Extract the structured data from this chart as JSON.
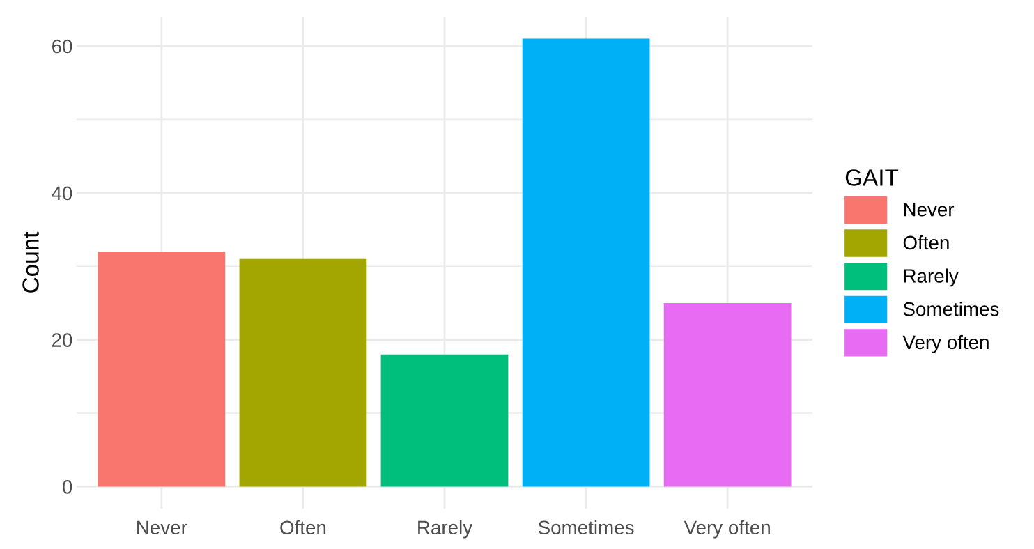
{
  "chart_data": {
    "type": "bar",
    "ylabel": "Count",
    "legend_title": "GAIT",
    "categories": [
      "Never",
      "Often",
      "Rarely",
      "Sometimes",
      "Very often"
    ],
    "series": [
      {
        "name": "Never",
        "color": "#f8766d",
        "values": [
          32,
          null,
          null,
          null,
          null
        ]
      },
      {
        "name": "Often",
        "color": "#a3a500",
        "values": [
          null,
          31,
          null,
          null,
          null
        ]
      },
      {
        "name": "Rarely",
        "color": "#00bf7d",
        "values": [
          null,
          null,
          18,
          null,
          null
        ]
      },
      {
        "name": "Sometimes",
        "color": "#00b0f6",
        "values": [
          null,
          null,
          null,
          61,
          null
        ]
      },
      {
        "name": "Very often",
        "color": "#e76bf3",
        "values": [
          null,
          null,
          null,
          null,
          25
        ]
      }
    ],
    "ylim": [
      -3,
      64
    ],
    "yticks": [
      0,
      20,
      40,
      60
    ],
    "grid": true,
    "legend": "right"
  }
}
